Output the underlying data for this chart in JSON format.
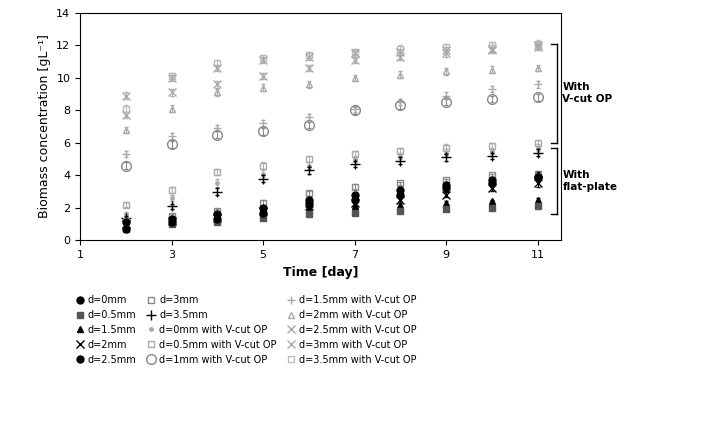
{
  "xlabel": "Time [day]",
  "ylabel": "Biomass concentration [gL⁻¹]",
  "xlim": [
    1,
    11.5
  ],
  "ylim": [
    0,
    14
  ],
  "xticks": [
    1,
    3,
    5,
    7,
    9,
    11
  ],
  "yticks": [
    0,
    2,
    4,
    6,
    8,
    10,
    12,
    14
  ],
  "days": [
    2,
    3,
    4,
    5,
    6,
    7,
    8,
    9,
    10,
    11
  ],
  "series": {
    "d0mm": [
      0.7,
      1.1,
      1.3,
      1.7,
      2.2,
      2.5,
      2.8,
      3.2,
      3.5,
      3.9
    ],
    "d0.5mm": [
      0.7,
      1.0,
      1.1,
      1.4,
      1.6,
      1.7,
      1.8,
      1.9,
      2.0,
      2.1
    ],
    "d1.5mm": [
      0.9,
      1.1,
      1.3,
      1.7,
      1.9,
      2.1,
      2.2,
      2.3,
      2.4,
      2.5
    ],
    "d2mm": [
      1.0,
      1.2,
      1.4,
      1.8,
      2.1,
      2.3,
      2.5,
      2.8,
      3.2,
      3.5
    ],
    "d2.5mm": [
      1.1,
      1.3,
      1.6,
      2.0,
      2.5,
      2.8,
      3.1,
      3.4,
      3.7,
      3.9
    ],
    "d3mm": [
      1.2,
      1.5,
      1.8,
      2.3,
      2.9,
      3.3,
      3.5,
      3.7,
      4.0,
      4.1
    ],
    "d3.5mm": [
      1.4,
      2.1,
      3.0,
      3.8,
      4.3,
      4.7,
      4.9,
      5.1,
      5.2,
      5.4
    ],
    "d0mm_vc": [
      1.6,
      2.6,
      3.5,
      4.1,
      4.6,
      5.0,
      5.2,
      5.4,
      5.5,
      5.7
    ],
    "d0.5mm_vc": [
      2.2,
      3.1,
      4.2,
      4.6,
      5.0,
      5.3,
      5.5,
      5.7,
      5.8,
      6.0
    ],
    "d1mm_vc": [
      4.6,
      5.9,
      6.5,
      6.7,
      7.1,
      8.0,
      8.3,
      8.5,
      8.7,
      8.8
    ],
    "d1.5mm_vc": [
      5.3,
      6.4,
      6.9,
      7.2,
      7.6,
      8.1,
      8.5,
      8.9,
      9.3,
      9.6
    ],
    "d2mm_vc": [
      6.8,
      8.1,
      9.1,
      9.4,
      9.6,
      10.0,
      10.2,
      10.4,
      10.5,
      10.6
    ],
    "d2.5mm_vc": [
      7.7,
      9.1,
      9.6,
      10.1,
      10.6,
      11.1,
      11.3,
      11.5,
      11.7,
      11.9
    ],
    "d3mm_vc": [
      8.9,
      10.0,
      10.6,
      11.1,
      11.3,
      11.5,
      11.6,
      11.7,
      11.8,
      12.0
    ],
    "d3.5mm_vc": [
      8.1,
      10.1,
      10.9,
      11.2,
      11.4,
      11.6,
      11.8,
      11.9,
      12.0,
      12.1
    ]
  },
  "error_bars": {
    "d0mm": [
      0.1,
      0.15,
      0.1,
      0.2,
      0.2,
      0.2,
      0.2,
      0.25,
      0.2,
      0.3
    ],
    "d0.5mm": [
      0.05,
      0.08,
      0.08,
      0.1,
      0.1,
      0.08,
      0.08,
      0.08,
      0.08,
      0.1
    ],
    "d1.5mm": [
      0.08,
      0.08,
      0.08,
      0.1,
      0.1,
      0.1,
      0.1,
      0.1,
      0.1,
      0.1
    ],
    "d2mm": [
      0.08,
      0.1,
      0.1,
      0.1,
      0.1,
      0.1,
      0.1,
      0.15,
      0.15,
      0.2
    ],
    "d2.5mm": [
      0.08,
      0.1,
      0.1,
      0.1,
      0.1,
      0.1,
      0.1,
      0.1,
      0.1,
      0.15
    ],
    "d3mm": [
      0.08,
      0.1,
      0.1,
      0.15,
      0.15,
      0.15,
      0.1,
      0.1,
      0.1,
      0.15
    ],
    "d3.5mm": [
      0.1,
      0.15,
      0.2,
      0.2,
      0.2,
      0.2,
      0.2,
      0.2,
      0.2,
      0.2
    ],
    "d0mm_vc": [
      0.15,
      0.2,
      0.25,
      0.2,
      0.2,
      0.2,
      0.2,
      0.2,
      0.2,
      0.2
    ],
    "d0.5mm_vc": [
      0.15,
      0.2,
      0.2,
      0.2,
      0.2,
      0.2,
      0.2,
      0.2,
      0.2,
      0.2
    ],
    "d1mm_vc": [
      0.2,
      0.2,
      0.2,
      0.2,
      0.2,
      0.2,
      0.2,
      0.2,
      0.2,
      0.2
    ],
    "d1.5mm_vc": [
      0.2,
      0.2,
      0.2,
      0.2,
      0.2,
      0.2,
      0.2,
      0.2,
      0.2,
      0.2
    ],
    "d2mm_vc": [
      0.2,
      0.2,
      0.2,
      0.2,
      0.2,
      0.2,
      0.2,
      0.2,
      0.2,
      0.2
    ],
    "d2.5mm_vc": [
      0.2,
      0.2,
      0.2,
      0.2,
      0.2,
      0.2,
      0.2,
      0.2,
      0.2,
      0.2
    ],
    "d3mm_vc": [
      0.2,
      0.2,
      0.2,
      0.2,
      0.2,
      0.2,
      0.2,
      0.2,
      0.2,
      0.2
    ],
    "d3.5mm_vc": [
      0.2,
      0.2,
      0.2,
      0.2,
      0.2,
      0.2,
      0.2,
      0.2,
      0.2,
      0.2
    ]
  },
  "plot_configs": [
    {
      "key": "d3.5mm_vc",
      "color": "#bbbbbb",
      "marker": "s",
      "filled": false,
      "ms": 5,
      "zo": 2
    },
    {
      "key": "d3mm_vc",
      "color": "#aaaaaa",
      "marker": "x",
      "filled": false,
      "ms": 6,
      "zo": 2
    },
    {
      "key": "d2.5mm_vc",
      "color": "#aaaaaa",
      "marker": "x",
      "filled": false,
      "ms": 6,
      "zo": 2
    },
    {
      "key": "d2mm_vc",
      "color": "#aaaaaa",
      "marker": "^",
      "filled": false,
      "ms": 5,
      "zo": 2
    },
    {
      "key": "d1.5mm_vc",
      "color": "#aaaaaa",
      "marker": "+",
      "filled": false,
      "ms": 6,
      "zo": 2
    },
    {
      "key": "d1mm_vc",
      "color": "#888888",
      "marker": "o",
      "filled": false,
      "ms": 7,
      "zo": 2
    },
    {
      "key": "d0.5mm_vc",
      "color": "#aaaaaa",
      "marker": "s",
      "filled": false,
      "ms": 4,
      "zo": 2
    },
    {
      "key": "d0mm_vc",
      "color": "#aaaaaa",
      "marker": ".",
      "filled": true,
      "ms": 5,
      "zo": 2
    },
    {
      "key": "d3.5mm",
      "color": "black",
      "marker": "+",
      "filled": false,
      "ms": 7,
      "zo": 3
    },
    {
      "key": "d3mm",
      "color": "#888888",
      "marker": "s",
      "filled": false,
      "ms": 4,
      "zo": 3
    },
    {
      "key": "d2.5mm",
      "color": "black",
      "marker": "o",
      "filled": true,
      "ms": 5,
      "zo": 4
    },
    {
      "key": "d2mm",
      "color": "black",
      "marker": "x",
      "filled": false,
      "ms": 6,
      "zo": 4
    },
    {
      "key": "d1.5mm",
      "color": "black",
      "marker": "^",
      "filled": true,
      "ms": 5,
      "zo": 5
    },
    {
      "key": "d0.5mm",
      "color": "#555555",
      "marker": "s",
      "filled": true,
      "ms": 4,
      "zo": 5
    },
    {
      "key": "d0mm",
      "color": "black",
      "marker": "o",
      "filled": true,
      "ms": 5,
      "zo": 6
    }
  ],
  "legend_rows": [
    [
      {
        "label": "d=0mm",
        "color": "black",
        "marker": "o",
        "filled": true,
        "ms": 5
      },
      {
        "label": "d=0.5mm",
        "color": "#555555",
        "marker": "s",
        "filled": true,
        "ms": 4
      },
      {
        "label": "d=1.5mm",
        "color": "black",
        "marker": "^",
        "filled": true,
        "ms": 5
      }
    ],
    [
      {
        "label": "d=2mm",
        "color": "black",
        "marker": "x",
        "filled": false,
        "ms": 6
      },
      {
        "label": "d=2.5mm",
        "color": "black",
        "marker": "o",
        "filled": true,
        "ms": 5
      },
      {
        "label": "d=3mm",
        "color": "#888888",
        "marker": "s",
        "filled": false,
        "ms": 4
      }
    ],
    [
      {
        "label": "d=3.5mm",
        "color": "black",
        "marker": "+",
        "filled": false,
        "ms": 7
      },
      {
        "label": "d=0mm with V-cut OP",
        "color": "#aaaaaa",
        "marker": ".",
        "filled": true,
        "ms": 5
      },
      {
        "label": "d=0.5mm with V-cut OP",
        "color": "#aaaaaa",
        "marker": "s",
        "filled": false,
        "ms": 4
      }
    ],
    [
      {
        "label": "d=1mm with V-cut OP",
        "color": "#888888",
        "marker": "o",
        "filled": false,
        "ms": 7
      },
      {
        "label": "d=1.5mm with V-cut OP",
        "color": "#aaaaaa",
        "marker": "+",
        "filled": false,
        "ms": 6
      },
      {
        "label": "d=2mm with V-cut OP",
        "color": "#aaaaaa",
        "marker": "^",
        "filled": false,
        "ms": 5
      }
    ],
    [
      {
        "label": "d=2.5mm with V-cut OP",
        "color": "#aaaaaa",
        "marker": "x",
        "filled": false,
        "ms": 6
      },
      {
        "label": "d=3mm with V-cut OP",
        "color": "#aaaaaa",
        "marker": "x",
        "filled": false,
        "ms": 6
      },
      {
        "label": "d=3.5mm with V-cut OP",
        "color": "#bbbbbb",
        "marker": "s",
        "filled": false,
        "ms": 5
      }
    ]
  ]
}
